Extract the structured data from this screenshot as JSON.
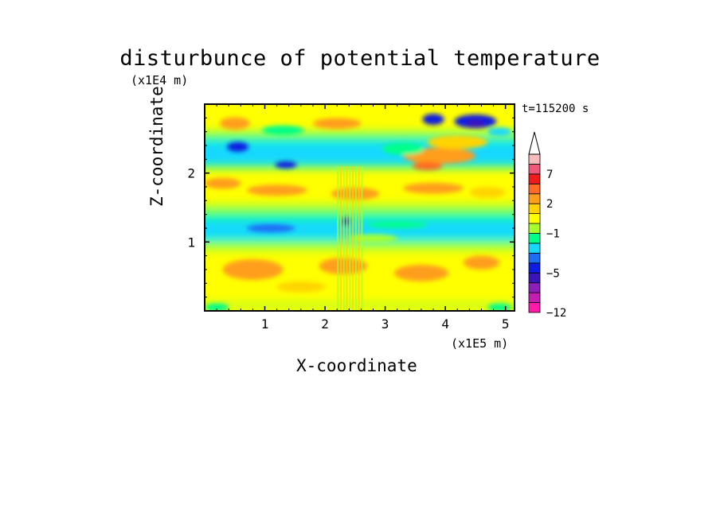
{
  "chart_data": {
    "type": "heatmap",
    "title": "disturbunce of potential temperature",
    "xlabel": "X-coordinate",
    "ylabel": "Z-coordinate",
    "x_unit_label": "(x1E5 m)",
    "z_unit_label": "(x1E4 m)",
    "time_label": "t=115200 s",
    "xlim": [
      0,
      5.15
    ],
    "ylim": [
      0,
      3.0
    ],
    "x_ticks": [
      "1",
      "2",
      "3",
      "4",
      "5"
    ],
    "y_ticks": [
      "1",
      "2"
    ],
    "colorbar": {
      "levels": [
        -12,
        -11,
        -9,
        -7,
        -5,
        -4,
        -3,
        -2,
        -1,
        0,
        1,
        2,
        3,
        5,
        7,
        9,
        11
      ],
      "labels": [
        "7",
        "2",
        "-1",
        "-5",
        "-12"
      ],
      "colors": [
        "#ff1aa8",
        "#c41eb0",
        "#8c1fb8",
        "#3a16b8",
        "#0d1ce0",
        "#1c6ef5",
        "#16d8ff",
        "#00ff8a",
        "#a8ff2e",
        "#ffff00",
        "#ffd400",
        "#ff9e1a",
        "#ff6a24",
        "#f01c1c",
        "#ef5878",
        "#f8bcbc"
      ],
      "extend": "max"
    },
    "field_description_rows": [
      {
        "z_range": [
          0.0,
          0.4
        ],
        "dominant": "yellow (0 to 2)"
      },
      {
        "z_range": [
          0.4,
          0.9
        ],
        "dominant": "yellow/orange (0 to 3)"
      },
      {
        "z_range": [
          0.9,
          1.5
        ],
        "dominant": "green/cyan (-2 to 0)"
      },
      {
        "z_range": [
          1.5,
          2.1
        ],
        "dominant": "yellow/orange (0 to 3)"
      },
      {
        "z_range": [
          2.1,
          2.6
        ],
        "dominant": "cyan/green (-2 to 0)"
      },
      {
        "z_range": [
          2.6,
          3.0
        ],
        "dominant": "orange/yellow with blue patches (-5 to 3)"
      }
    ]
  }
}
